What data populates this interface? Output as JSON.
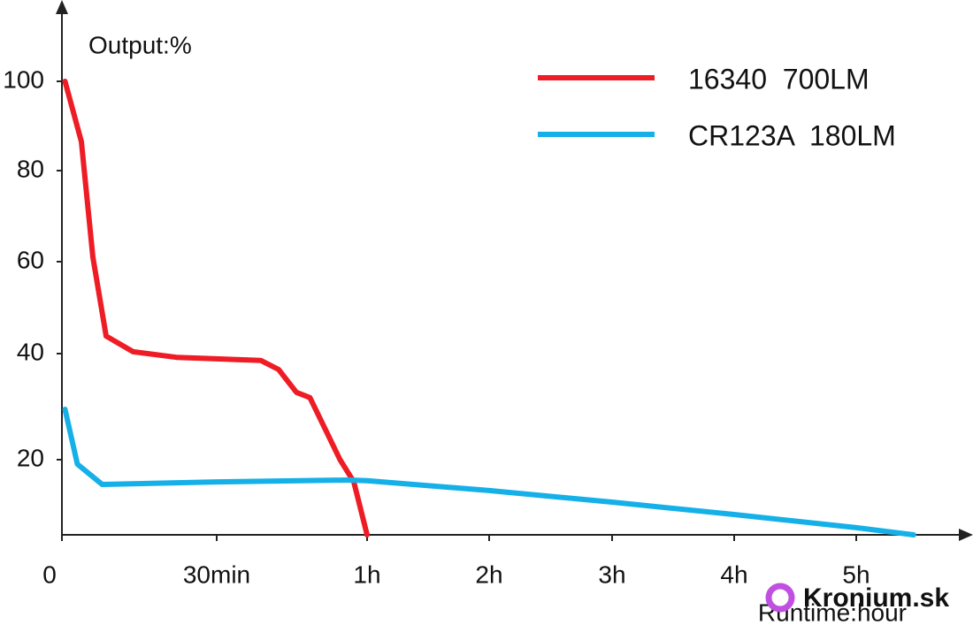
{
  "chart_data": {
    "type": "line",
    "title": "Output:%",
    "x_label": "Runtime:hour",
    "watermark": "Kronium.sk",
    "xlim": [
      0,
      6
    ],
    "xticks": [
      0,
      {
        "value": 0.5,
        "label": "30min"
      },
      {
        "value": 1,
        "label": "1h"
      },
      {
        "value": 2,
        "label": "2h"
      },
      {
        "value": 3,
        "label": "3h"
      },
      {
        "value": 4,
        "label": "4h"
      },
      {
        "value": 5,
        "label": "5h"
      }
    ],
    "ylim": [
      0,
      115
    ],
    "yticks": [
      20,
      40,
      60,
      80,
      100
    ],
    "series": [
      {
        "name": "16340  700LM",
        "color": "#ee1c25",
        "x": [
          0.01,
          0.063,
          0.1,
          0.143,
          0.23,
          0.37,
          0.647,
          0.706,
          0.765,
          0.81,
          0.91,
          0.956,
          1.0
        ],
        "values": [
          100,
          86.5,
          61,
          43.8,
          40.4,
          39.3,
          38.7,
          37,
          32.7,
          31.7,
          20,
          14.1,
          0
        ]
      },
      {
        "name": "CR123A  180LM",
        "color": "#15b0e8",
        "x": [
          0.01,
          0.05,
          0.13,
          0.5,
          0.94,
          1.0,
          2,
          3,
          4,
          5,
          5.47
        ],
        "values": [
          29.5,
          18.8,
          13.4,
          14.1,
          14.6,
          14.4,
          11.8,
          8.7,
          5.4,
          1.9,
          0
        ]
      }
    ]
  }
}
